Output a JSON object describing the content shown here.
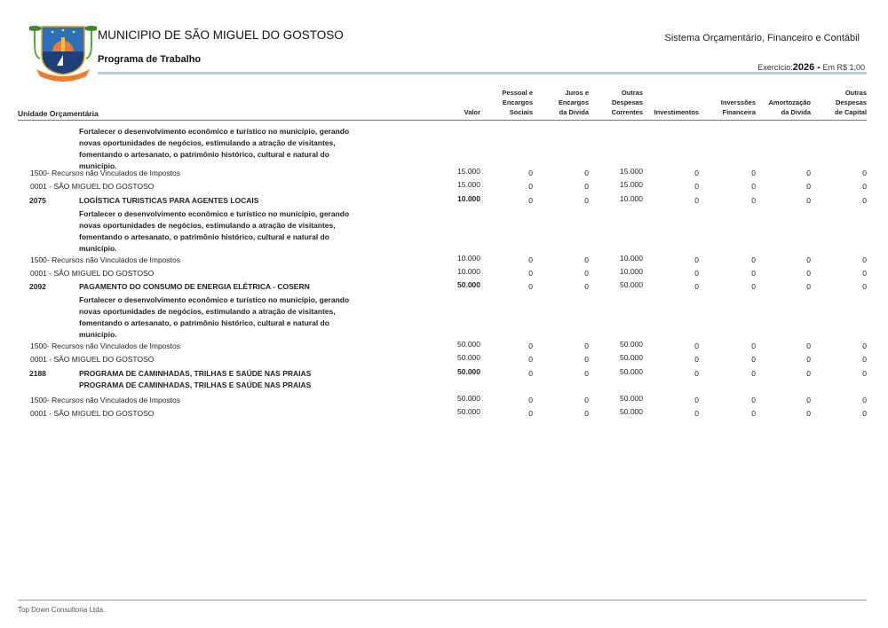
{
  "header": {
    "title": "MUNICIPIO DE SÃO MIGUEL DO GOSTOSO",
    "subtitle": "Programa de Trabalho",
    "system": "Sistema Orçamentário, Financeiro e Contábil",
    "exercicio_label": "Exercício:",
    "exercicio_year": "2026 -",
    "currency": "Em R$ 1,00",
    "logo_icon": "municipal-coat-of-arms"
  },
  "columns": {
    "unidade": "Unidade Orçamentária",
    "list": [
      [
        "Valor"
      ],
      [
        "Pessoal e",
        "Encargos",
        "Sociais"
      ],
      [
        "Juros e",
        "Encargos",
        "da Divida"
      ],
      [
        "Outras",
        "Despesas",
        "Correntes"
      ],
      [
        "Investimentos"
      ],
      [
        "Inverssões",
        "Financeira"
      ],
      [
        "Amortozação",
        "da Divida"
      ],
      [
        "Outras",
        "Despesas",
        "de Capital"
      ]
    ]
  },
  "rows": [
    {
      "type": "desc",
      "lines": [
        "Fortalecer o desenvolvimento econômico e turístico no município, gerando",
        "novas oportunidades de negócios, estimulando a atração de visitantes,",
        "fomentando o artesanato, o patrimônio histórico, cultural e natural do",
        "município."
      ]
    },
    {
      "type": "fonte",
      "label": "1500- Recursos não Vinculados de Impostos",
      "values": [
        "15.000",
        "0",
        "0",
        "15.000",
        "0",
        "0",
        "0",
        "0"
      ]
    },
    {
      "type": "unidade",
      "label": "0001 - SÃO MIGUEL DO GOSTOSO",
      "values": [
        "15.000",
        "0",
        "0",
        "15.000",
        "0",
        "0",
        "0",
        "0"
      ]
    },
    {
      "type": "acao",
      "code": "2075",
      "label": "LOGÍSTICA TURISTICAS PARA AGENTES LOCAIS",
      "values": [
        "10.000",
        "0",
        "0",
        "10.000",
        "0",
        "0",
        "0",
        "0"
      ]
    },
    {
      "type": "desc",
      "lines": [
        "Fortalecer o desenvolvimento econômico e turístico no município, gerando",
        "novas oportunidades de negócios, estimulando a atração de visitantes,",
        "fomentando o artesanato, o patrimônio histórico, cultural e natural do",
        "município."
      ]
    },
    {
      "type": "fonte",
      "label": "1500- Recursos não Vinculados de Impostos",
      "values": [
        "10.000",
        "0",
        "0",
        "10.000",
        "0",
        "0",
        "0",
        "0"
      ]
    },
    {
      "type": "unidade",
      "label": "0001 - SÃO MIGUEL DO GOSTOSO",
      "values": [
        "10.000",
        "0",
        "0",
        "10.000",
        "0",
        "0",
        "0",
        "0"
      ]
    },
    {
      "type": "acao",
      "code": "2092",
      "label": "PAGAMENTO DO CONSUMO DE ENERGIA ELÉTRICA - COSERN",
      "values": [
        "50.000",
        "0",
        "0",
        "50.000",
        "0",
        "0",
        "0",
        "0"
      ]
    },
    {
      "type": "desc",
      "lines": [
        "Fortalecer o desenvolvimento econômico e turístico no município, gerando",
        "novas oportunidades de negócios, estimulando a atração de visitantes,",
        "fomentando o artesanato, o patrimônio histórico, cultural e natural do",
        "município."
      ]
    },
    {
      "type": "fonte",
      "label": "1500- Recursos não Vinculados de Impostos",
      "values": [
        "50.000",
        "0",
        "0",
        "50.000",
        "0",
        "0",
        "0",
        "0"
      ]
    },
    {
      "type": "unidade",
      "label": "0001 - SÃO MIGUEL DO GOSTOSO",
      "values": [
        "50.000",
        "0",
        "0",
        "50.000",
        "0",
        "0",
        "0",
        "0"
      ]
    },
    {
      "type": "acao",
      "code": "2188",
      "label": "PROGRAMA DE CAMINHADAS, TRILHAS E SAÚDE NAS PRAIAS",
      "values": [
        "50.000",
        "0",
        "0",
        "50.000",
        "0",
        "0",
        "0",
        "0"
      ]
    },
    {
      "type": "desc",
      "lines": [
        "PROGRAMA DE CAMINHADAS, TRILHAS E SAÚDE NAS PRAIAS"
      ]
    },
    {
      "type": "fonte",
      "label": "1500- Recursos não Vinculados de Impostos",
      "values": [
        "50.000",
        "0",
        "0",
        "50.000",
        "0",
        "0",
        "0",
        "0"
      ]
    },
    {
      "type": "unidade",
      "label": "0001 - SÃO MIGUEL DO GOSTOSO",
      "values": [
        "50.000",
        "0",
        "0",
        "50.000",
        "0",
        "0",
        "0",
        "0"
      ]
    }
  ],
  "footer": {
    "text": "Top Down Consultoria Ltda."
  },
  "colors": {
    "rule": "#a9d6da"
  }
}
